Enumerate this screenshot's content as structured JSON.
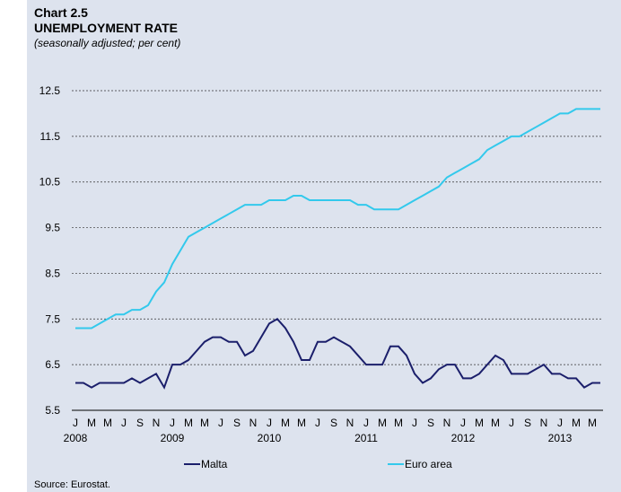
{
  "chart_data": {
    "type": "line",
    "label": "Chart 2.5",
    "title": "UNEMPLOYMENT RATE",
    "subtitle": "(seasonally adjusted; per cent)",
    "source": "Source: Eurostat.",
    "categories": [
      "J",
      null,
      "M",
      null,
      "M",
      null,
      "J",
      null,
      "S",
      null,
      "N",
      null,
      "J",
      null,
      "M",
      null,
      "M",
      null,
      "J",
      null,
      "S",
      null,
      "N",
      null,
      "J",
      null,
      "M",
      null,
      "M",
      null,
      "J",
      null,
      "S",
      null,
      "N",
      null,
      "J",
      null,
      "M",
      null,
      "M",
      null,
      "J",
      null,
      "S",
      null,
      "N",
      null,
      "J",
      null,
      "M",
      null,
      "M",
      null,
      "J",
      null,
      "S",
      null,
      "N",
      null,
      "J",
      null,
      "M",
      null,
      "M",
      null
    ],
    "years": [
      "2008",
      "2009",
      "2010",
      "2011",
      "2012",
      "2013"
    ],
    "series": [
      {
        "name": "Malta",
        "color": "#1b1f6b",
        "values": [
          6.1,
          6.1,
          6.0,
          6.1,
          6.1,
          6.1,
          6.1,
          6.2,
          6.1,
          6.2,
          6.3,
          6.0,
          6.5,
          6.5,
          6.6,
          6.8,
          7.0,
          7.1,
          7.1,
          7.0,
          7.0,
          6.7,
          6.8,
          7.1,
          7.4,
          7.5,
          7.3,
          7.0,
          6.6,
          6.6,
          7.0,
          7.0,
          7.1,
          7.0,
          6.9,
          6.7,
          6.5,
          6.5,
          6.5,
          6.9,
          6.9,
          6.7,
          6.3,
          6.1,
          6.2,
          6.4,
          6.5,
          6.5,
          6.2,
          6.2,
          6.3,
          6.5,
          6.7,
          6.6,
          6.3,
          6.3,
          6.3,
          6.4,
          6.5,
          6.3,
          6.3,
          6.2,
          6.2,
          6.0,
          6.1,
          6.1
        ]
      },
      {
        "name": "Euro area",
        "color": "#33c9ec",
        "values": [
          7.3,
          7.3,
          7.3,
          7.4,
          7.5,
          7.6,
          7.6,
          7.7,
          7.7,
          7.8,
          8.1,
          8.3,
          8.7,
          9.0,
          9.3,
          9.4,
          9.5,
          9.6,
          9.7,
          9.8,
          9.9,
          10.0,
          10.0,
          10.0,
          10.1,
          10.1,
          10.1,
          10.2,
          10.2,
          10.1,
          10.1,
          10.1,
          10.1,
          10.1,
          10.1,
          10.0,
          10.0,
          9.9,
          9.9,
          9.9,
          9.9,
          10.0,
          10.1,
          10.2,
          10.3,
          10.4,
          10.6,
          10.7,
          10.8,
          10.9,
          11.0,
          11.2,
          11.3,
          11.4,
          11.5,
          11.5,
          11.6,
          11.7,
          11.8,
          11.9,
          12.0,
          12.0,
          12.1,
          12.1,
          12.1,
          12.1
        ]
      }
    ],
    "ylim": [
      5.5,
      12.5
    ],
    "yticks": [
      5.5,
      6.5,
      7.5,
      8.5,
      9.5,
      10.5,
      11.5,
      12.5
    ],
    "grid": true,
    "legend": "bottom"
  }
}
